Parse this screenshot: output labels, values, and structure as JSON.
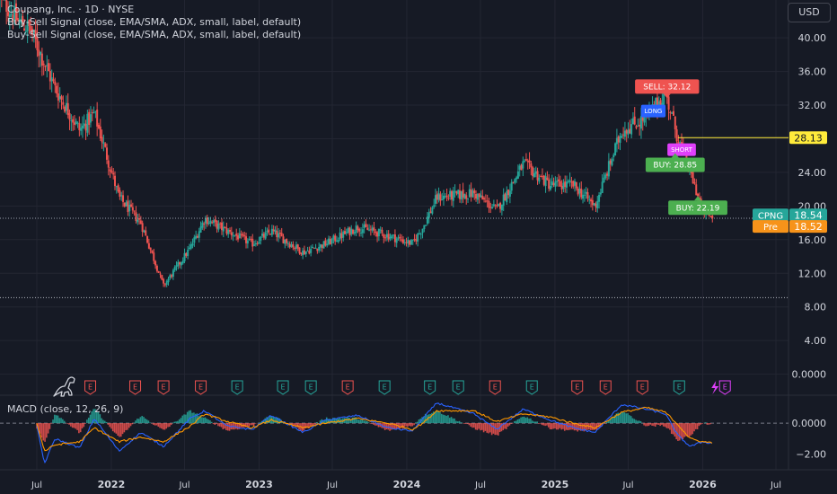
{
  "header": {
    "title": "Coupang, Inc. · 1D · NYSE",
    "indicator1": "Buy-Sell Signal (close, EMA/SMA, ADX, small, label, default)",
    "indicator2": "Buy-Sell Signal (close, EMA/SMA, ADX, small, label, default)",
    "currency": "USD"
  },
  "colors": {
    "background": "#161a25",
    "grid": "#232632",
    "up": "#26a69a",
    "down": "#ef5350",
    "text": "#d1d4dc",
    "macd_line": "#2962ff",
    "signal_line": "#ff9800",
    "last_price": "#26a69a",
    "premarket": "#f7931a",
    "level_line": "#ffeb3b",
    "short_label": "#e040fb",
    "long_label": "#2962ff"
  },
  "chart_data": [
    {
      "type": "candlestick",
      "symbol": "CPNG",
      "y_ticks": [
        "0.0000",
        "4.00",
        "8.00",
        "12.00",
        "16.00",
        "20.00",
        "24.00",
        "28.00",
        "32.00",
        "36.00",
        "40.00"
      ],
      "ylim": [
        -2.5,
        44.5
      ],
      "x_ticks": [
        "Jul",
        "2022",
        "Jul",
        "2023",
        "Jul",
        "2024",
        "Jul",
        "2025",
        "Jul",
        "2026",
        "Jul"
      ],
      "xlim": [
        "2021-04-01",
        "2026-08-01"
      ],
      "price_path": [
        {
          "x": "2021-04-01",
          "y": 45
        },
        {
          "x": "2021-05-15",
          "y": 42
        },
        {
          "x": "2021-06-15",
          "y": 41
        },
        {
          "x": "2021-08-15",
          "y": 34
        },
        {
          "x": "2021-10-15",
          "y": 29
        },
        {
          "x": "2021-11-20",
          "y": 31
        },
        {
          "x": "2022-01-20",
          "y": 21
        },
        {
          "x": "2022-03-15",
          "y": 18
        },
        {
          "x": "2022-05-10",
          "y": 10.5
        },
        {
          "x": "2022-07-15",
          "y": 15
        },
        {
          "x": "2022-08-20",
          "y": 18.5
        },
        {
          "x": "2022-10-15",
          "y": 17
        },
        {
          "x": "2022-12-15",
          "y": 15.5
        },
        {
          "x": "2023-02-01",
          "y": 17
        },
        {
          "x": "2023-04-20",
          "y": 14.5
        },
        {
          "x": "2023-06-15",
          "y": 15.5
        },
        {
          "x": "2023-09-01",
          "y": 17.5
        },
        {
          "x": "2023-11-15",
          "y": 16.5
        },
        {
          "x": "2024-01-15",
          "y": 15.5
        },
        {
          "x": "2024-02-10",
          "y": 17.5
        },
        {
          "x": "2024-03-15",
          "y": 21
        },
        {
          "x": "2024-06-15",
          "y": 21.5
        },
        {
          "x": "2024-08-10",
          "y": 19.5
        },
        {
          "x": "2024-10-15",
          "y": 25
        },
        {
          "x": "2024-12-20",
          "y": 22.5
        },
        {
          "x": "2025-02-15",
          "y": 22.5
        },
        {
          "x": "2025-04-10",
          "y": 20
        },
        {
          "x": "2025-06-15",
          "y": 29
        },
        {
          "x": "2025-08-15",
          "y": 30.5
        },
        {
          "x": "2025-10-01",
          "y": 33.5
        },
        {
          "x": "2025-11-01",
          "y": 28
        },
        {
          "x": "2025-12-01",
          "y": 24
        },
        {
          "x": "2026-01-01",
          "y": 19.5
        },
        {
          "x": "2026-01-25",
          "y": 18.54
        }
      ],
      "last_price": {
        "label": "CPNG",
        "value": 18.54,
        "text": "18.54"
      },
      "premarket": {
        "label": "Pre",
        "value": 18.52,
        "text": "18.52"
      },
      "level": {
        "value": 28.13,
        "text": "28.13",
        "from": "2025-11-01"
      },
      "dotted_levels": [
        18.54,
        9.1
      ],
      "signals": [
        {
          "type": "sell",
          "text": "SELL: 32.12",
          "x": "2025-10-05",
          "y": 34.2
        },
        {
          "type": "long",
          "text": "LONG",
          "x": "2025-09-01",
          "y": 31.3
        },
        {
          "type": "short",
          "text": "SHORT",
          "x": "2025-11-10",
          "y": 26.7
        },
        {
          "type": "buy",
          "text": "BUY: 28.85",
          "x": "2025-10-25",
          "y": 24.9
        },
        {
          "type": "buy",
          "text": "BUY: 22.19",
          "x": "2025-12-20",
          "y": 19.8
        }
      ],
      "earnings": [
        {
          "x": "2021-11-10",
          "result": "miss"
        },
        {
          "x": "2022-03-01",
          "result": "miss"
        },
        {
          "x": "2022-05-10",
          "result": "miss"
        },
        {
          "x": "2022-08-10",
          "result": "miss"
        },
        {
          "x": "2022-11-08",
          "result": "beat"
        },
        {
          "x": "2023-03-01",
          "result": "beat"
        },
        {
          "x": "2023-05-09",
          "result": "beat"
        },
        {
          "x": "2023-08-08",
          "result": "miss"
        },
        {
          "x": "2023-11-07",
          "result": "beat"
        },
        {
          "x": "2024-02-27",
          "result": "beat"
        },
        {
          "x": "2024-05-07",
          "result": "beat"
        },
        {
          "x": "2024-08-06",
          "result": "miss"
        },
        {
          "x": "2024-11-05",
          "result": "beat"
        },
        {
          "x": "2025-02-25",
          "result": "miss"
        },
        {
          "x": "2025-05-06",
          "result": "miss"
        },
        {
          "x": "2025-08-05",
          "result": "miss"
        },
        {
          "x": "2025-11-04",
          "result": "beat"
        },
        {
          "x": "2026-02-25",
          "result": "upcoming"
        }
      ],
      "earnings_letter": "E",
      "dividend_marker": {
        "x": "2021-04-15",
        "icon": "dinosaur-icon"
      }
    },
    {
      "type": "macd",
      "title": "MACD (close, 12, 26, 9)",
      "y_ticks": [
        "0.0000",
        "−2.00"
      ],
      "ylim": [
        -3.0,
        1.8
      ],
      "macd_path": [
        {
          "x": "2021-07-01",
          "y": -0.2
        },
        {
          "x": "2021-07-20",
          "y": -2.6
        },
        {
          "x": "2021-08-15",
          "y": -1.0
        },
        {
          "x": "2021-10-15",
          "y": -1.6
        },
        {
          "x": "2021-11-20",
          "y": 0.3
        },
        {
          "x": "2022-01-20",
          "y": -1.8
        },
        {
          "x": "2022-03-15",
          "y": -0.6
        },
        {
          "x": "2022-05-10",
          "y": -1.5
        },
        {
          "x": "2022-07-15",
          "y": 0.3
        },
        {
          "x": "2022-08-20",
          "y": 0.8
        },
        {
          "x": "2022-10-15",
          "y": -0.2
        },
        {
          "x": "2022-12-15",
          "y": -0.4
        },
        {
          "x": "2023-02-01",
          "y": 0.5
        },
        {
          "x": "2023-04-20",
          "y": -0.6
        },
        {
          "x": "2023-06-15",
          "y": 0.2
        },
        {
          "x": "2023-09-01",
          "y": 0.5
        },
        {
          "x": "2023-11-15",
          "y": -0.3
        },
        {
          "x": "2024-01-15",
          "y": -0.5
        },
        {
          "x": "2024-02-10",
          "y": 0.3
        },
        {
          "x": "2024-03-15",
          "y": 1.3
        },
        {
          "x": "2024-06-15",
          "y": 0.6
        },
        {
          "x": "2024-08-10",
          "y": -0.4
        },
        {
          "x": "2024-10-15",
          "y": 0.9
        },
        {
          "x": "2024-12-20",
          "y": 0.2
        },
        {
          "x": "2025-02-15",
          "y": -0.3
        },
        {
          "x": "2025-04-10",
          "y": -0.6
        },
        {
          "x": "2025-06-15",
          "y": 1.2
        },
        {
          "x": "2025-08-15",
          "y": 0.9
        },
        {
          "x": "2025-10-01",
          "y": 0.6
        },
        {
          "x": "2025-11-01",
          "y": -0.8
        },
        {
          "x": "2025-12-01",
          "y": -1.5
        },
        {
          "x": "2026-01-01",
          "y": -1.2
        },
        {
          "x": "2026-01-25",
          "y": -1.3
        }
      ],
      "signal_path": [
        {
          "x": "2021-07-01",
          "y": 0.0
        },
        {
          "x": "2021-07-20",
          "y": -1.8
        },
        {
          "x": "2021-08-15",
          "y": -1.4
        },
        {
          "x": "2021-10-15",
          "y": -1.2
        },
        {
          "x": "2021-11-20",
          "y": -0.3
        },
        {
          "x": "2022-01-20",
          "y": -1.2
        },
        {
          "x": "2022-03-15",
          "y": -0.9
        },
        {
          "x": "2022-05-10",
          "y": -1.2
        },
        {
          "x": "2022-07-15",
          "y": -0.2
        },
        {
          "x": "2022-08-20",
          "y": 0.6
        },
        {
          "x": "2022-10-15",
          "y": 0.1
        },
        {
          "x": "2022-12-15",
          "y": -0.3
        },
        {
          "x": "2023-02-01",
          "y": 0.2
        },
        {
          "x": "2023-04-20",
          "y": -0.3
        },
        {
          "x": "2023-06-15",
          "y": 0.0
        },
        {
          "x": "2023-09-01",
          "y": 0.3
        },
        {
          "x": "2023-11-15",
          "y": 0.0
        },
        {
          "x": "2024-01-15",
          "y": -0.4
        },
        {
          "x": "2024-02-10",
          "y": 0.0
        },
        {
          "x": "2024-03-15",
          "y": 0.8
        },
        {
          "x": "2024-06-15",
          "y": 0.8
        },
        {
          "x": "2024-08-10",
          "y": 0.1
        },
        {
          "x": "2024-10-15",
          "y": 0.6
        },
        {
          "x": "2024-12-20",
          "y": 0.4
        },
        {
          "x": "2025-02-15",
          "y": 0.0
        },
        {
          "x": "2025-04-10",
          "y": -0.3
        },
        {
          "x": "2025-06-15",
          "y": 0.7
        },
        {
          "x": "2025-08-15",
          "y": 1.0
        },
        {
          "x": "2025-10-01",
          "y": 0.7
        },
        {
          "x": "2025-11-01",
          "y": -0.1
        },
        {
          "x": "2025-12-01",
          "y": -1.0
        },
        {
          "x": "2026-01-01",
          "y": -1.2
        },
        {
          "x": "2026-01-25",
          "y": -1.25
        }
      ]
    }
  ]
}
